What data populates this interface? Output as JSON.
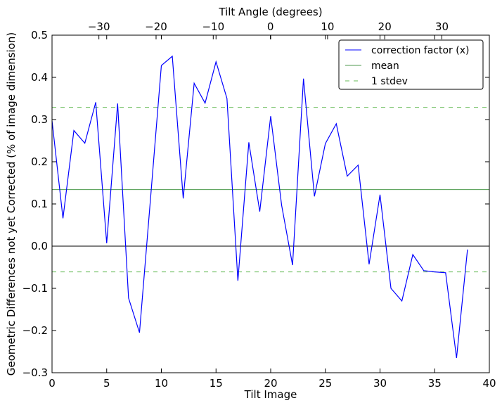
{
  "chart_data": {
    "type": "line",
    "xlabel": "Tilt Image",
    "ylabel": "Geometric Differences not yet Corrected (% of image dimension)",
    "top_xlabel": "Tilt Angle (degrees)",
    "xlim": [
      0,
      40
    ],
    "ylim": [
      -0.3,
      0.5
    ],
    "top_xlim": [
      -38.2,
      38.3
    ],
    "xticks": [
      0,
      5,
      10,
      15,
      20,
      25,
      30,
      35,
      40
    ],
    "yticks": [
      -0.3,
      -0.2,
      -0.1,
      0.0,
      0.1,
      0.2,
      0.3,
      0.4,
      0.5
    ],
    "ytick_labels": [
      "−0.3",
      "−0.2",
      "−0.1",
      "0.0",
      "0.1",
      "0.2",
      "0.3",
      "0.4",
      "0.5"
    ],
    "top_xticks": [
      -30,
      -20,
      -10,
      0,
      10,
      20,
      30
    ],
    "top_xtick_labels": [
      "−30",
      "−20",
      "−10",
      "0",
      "10",
      "20",
      "30"
    ],
    "legend_position": "top-right",
    "series": [
      {
        "name": "correction factor (x)",
        "color": "#0000ff",
        "style": "solid",
        "x": [
          0,
          1,
          2,
          3,
          4,
          5,
          6,
          7,
          8,
          9,
          10,
          11,
          12,
          13,
          14,
          15,
          16,
          17,
          18,
          19,
          20,
          21,
          22,
          23,
          24,
          25,
          26,
          27,
          28,
          29,
          30,
          31,
          32,
          33,
          34,
          35,
          36,
          37,
          38
        ],
        "y": [
          0.297,
          0.066,
          0.274,
          0.244,
          0.341,
          0.007,
          0.338,
          -0.123,
          -0.205,
          0.11,
          0.428,
          0.45,
          0.113,
          0.386,
          0.339,
          0.437,
          0.35,
          -0.082,
          0.246,
          0.082,
          0.308,
          0.097,
          -0.045,
          0.397,
          0.118,
          0.243,
          0.29,
          0.166,
          0.192,
          -0.043,
          0.122,
          -0.1,
          -0.13,
          -0.02,
          -0.058,
          -0.061,
          -0.063,
          -0.265,
          -0.008
        ]
      },
      {
        "name": "mean",
        "color": "#4c9a4c",
        "style": "solid",
        "y_const": 0.134
      },
      {
        "name": "1 stdev",
        "color": "#66bb55",
        "style": "dashed",
        "y_const": [
          0.329,
          -0.061
        ]
      }
    ],
    "reference_line": {
      "y": 0.0,
      "color": "#000000"
    }
  }
}
